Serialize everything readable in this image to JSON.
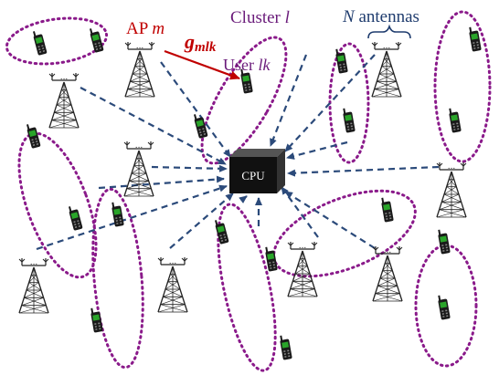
{
  "labels": {
    "ap": "AP m",
    "ap_name": "AP",
    "ap_index": "m",
    "channel": "g",
    "channel_sub": "mlk",
    "cluster": "Cluster l",
    "cluster_name": "Cluster",
    "cluster_index": "l",
    "user": "User lk",
    "user_name": "User",
    "user_index": "lk",
    "antennas": "N antennas",
    "antennas_n": "N",
    "antennas_word": "antennas",
    "cpu": "CPU",
    "ap_dots": "..."
  },
  "colors": {
    "red": "#c00000",
    "purple": "#6a1b7a",
    "navy": "#1f3c6e",
    "arrow": "#2b4a7a",
    "cluster": "#8a1a8a",
    "phone_body": "#1a1a1a",
    "phone_screen": "#2aa52a",
    "tower": "#222222",
    "cpu_face": "#111111"
  },
  "icons": {
    "ap": "antenna-tower-icon",
    "user": "mobile-phone-icon",
    "cpu": "cpu-cube-icon"
  }
}
